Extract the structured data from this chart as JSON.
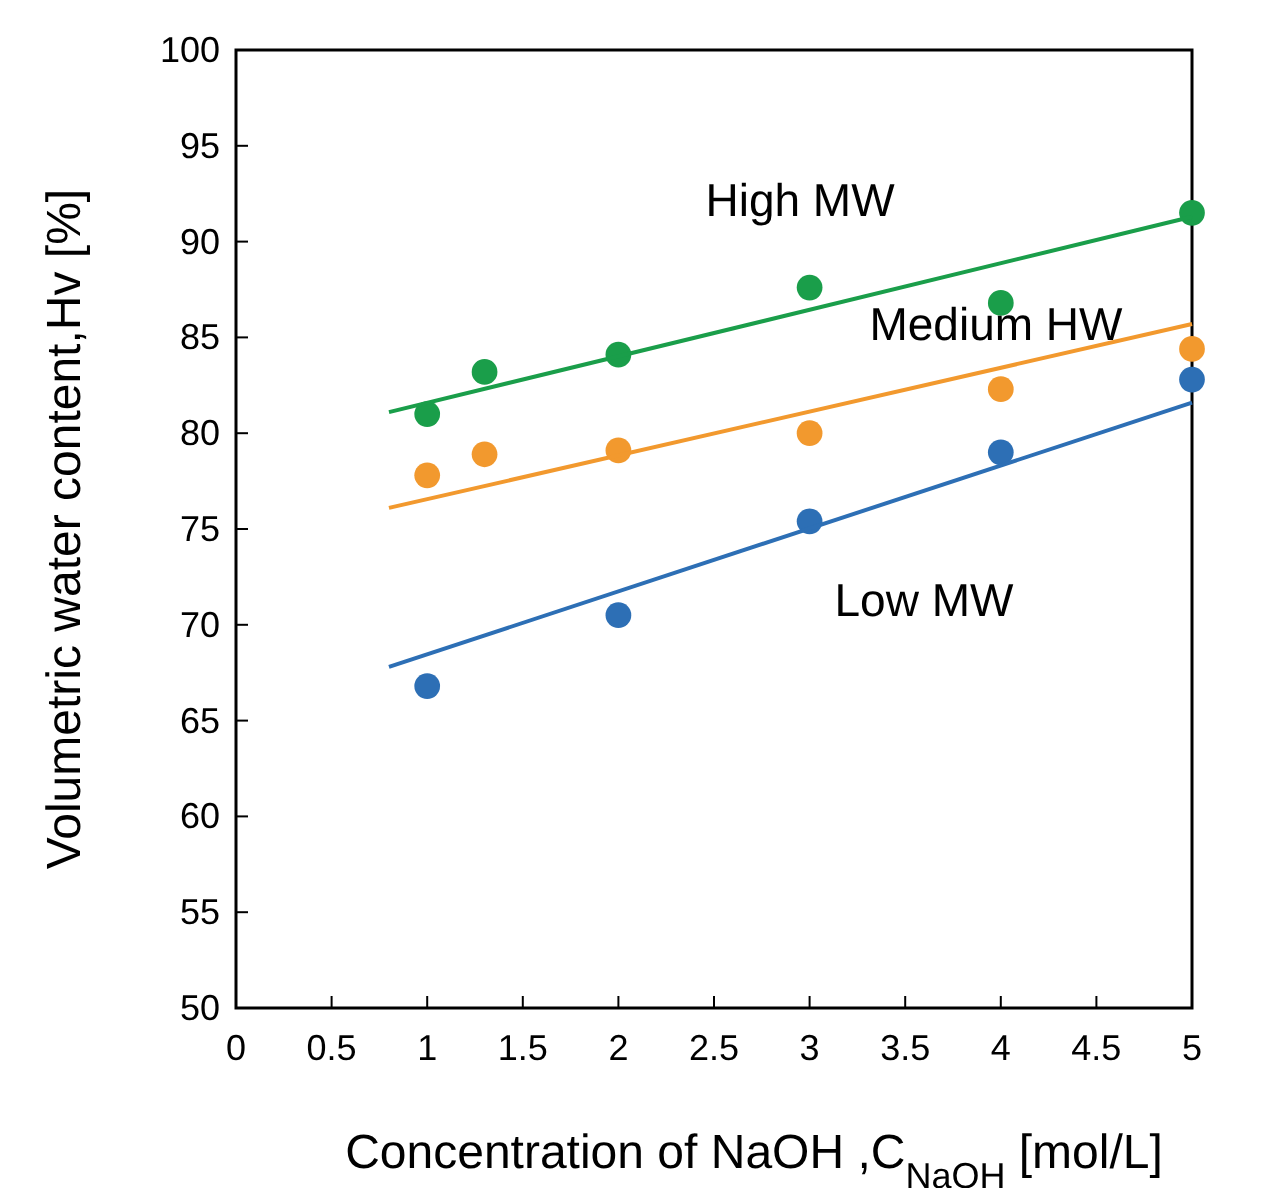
{
  "chart_data": {
    "type": "scatter",
    "xlabel": "Concentration of NaOH ,C$_{NaOH}$ [mol/L]",
    "ylabel": "Volumetric water content,Hv [%]",
    "xlim": [
      0,
      5
    ],
    "ylim": [
      50,
      100
    ],
    "xticks": [
      0,
      0.5,
      1,
      1.5,
      2,
      2.5,
      3,
      3.5,
      4,
      4.5,
      5
    ],
    "yticks": [
      50,
      55,
      60,
      65,
      70,
      75,
      80,
      85,
      90,
      95,
      100
    ],
    "marker": "circle",
    "grid": false,
    "series": [
      {
        "color": "#1a9e4a",
        "x": [
          1,
          1.3,
          2,
          3,
          4,
          5
        ],
        "values": [
          81.0,
          83.2,
          84.1,
          87.6,
          86.8,
          91.5
        ]
      },
      {
        "color": "#f2992e",
        "x": [
          1,
          1.3,
          2,
          3,
          4,
          5
        ],
        "values": [
          77.8,
          78.9,
          79.1,
          80.0,
          82.3,
          84.4
        ]
      },
      {
        "color": "#2d6fb5",
        "x": [
          1,
          2,
          3,
          4,
          5
        ],
        "values": [
          66.8,
          70.5,
          75.4,
          79.0,
          82.8
        ]
      },
      {
        "type": "line",
        "marker": "none",
        "color": "#1a9e4a",
        "x": [
          0.8,
          5
        ],
        "values": [
          81.1,
          91.3
        ]
      },
      {
        "type": "line",
        "marker": "none",
        "color": "#f2992e",
        "x": [
          0.8,
          5
        ],
        "values": [
          76.1,
          85.7
        ]
      },
      {
        "type": "line",
        "marker": "none",
        "color": "#2d6fb5",
        "x": [
          0.8,
          5
        ],
        "values": [
          67.8,
          81.6
        ]
      }
    ],
    "annotations": [
      "High MW",
      "Medium HW",
      "Low MW"
    ]
  }
}
